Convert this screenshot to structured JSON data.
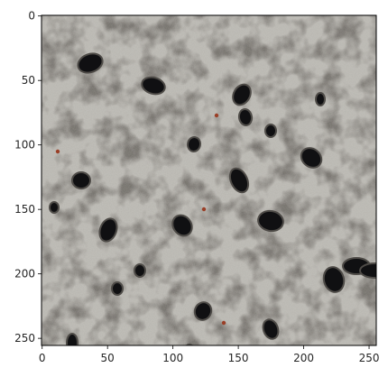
{
  "image": {
    "description_icon": "terrazzo-texture-image",
    "palette": {
      "base": "#b9b7b1",
      "light": "#d6d4cf",
      "mid": "#8f8c86",
      "dark": "#4e4b47",
      "hole": "#101012",
      "accent": "#9a3f27"
    }
  },
  "axes": {
    "x_ticks": [
      {
        "value": 0,
        "label": "0"
      },
      {
        "value": 50,
        "label": "50"
      },
      {
        "value": 100,
        "label": "100"
      },
      {
        "value": 150,
        "label": "150"
      },
      {
        "value": 200,
        "label": "200"
      },
      {
        "value": 250,
        "label": "250"
      }
    ],
    "y_ticks": [
      {
        "value": 0,
        "label": "0"
      },
      {
        "value": 50,
        "label": "50"
      },
      {
        "value": 100,
        "label": "100"
      },
      {
        "value": 150,
        "label": "150"
      },
      {
        "value": 200,
        "label": "200"
      },
      {
        "value": 250,
        "label": "250"
      }
    ],
    "xlim": [
      0,
      256
    ],
    "ylim": [
      256,
      0
    ]
  }
}
